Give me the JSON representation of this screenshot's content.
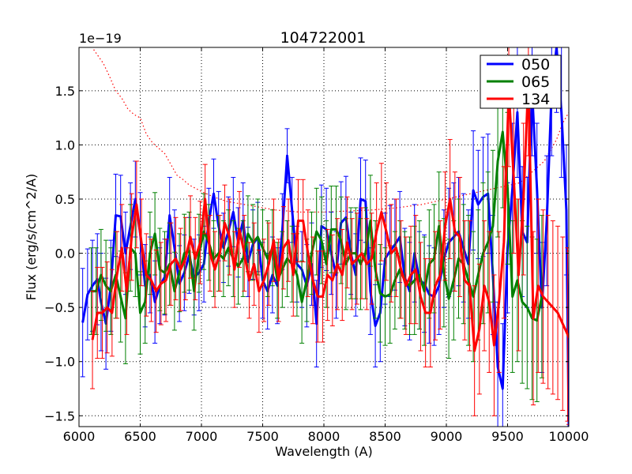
{
  "chart_data": {
    "type": "line",
    "title": "104722001",
    "xlabel": "Wavelength (A)",
    "ylabel": "Flux (erg/s/cm^2/A)",
    "offset_text": "1e−19",
    "xlim": [
      6000,
      10000
    ],
    "ylim": [
      -1.6,
      1.9
    ],
    "grid": true,
    "legend_position": "top-right",
    "xticks": [
      6000,
      6500,
      7000,
      7500,
      8000,
      8500,
      9000,
      9500,
      10000
    ],
    "xtick_labels": [
      "6000",
      "6500",
      "7000",
      "7500",
      "8000",
      "8500",
      "9000",
      "9500",
      "10000"
    ],
    "yticks": [
      -1.5,
      -1.0,
      -0.5,
      0.0,
      0.5,
      1.0,
      1.5
    ],
    "ytick_labels": [
      "−1.5",
      "−1.0",
      "−0.5",
      "0.0",
      "0.5",
      "1.0",
      "1.5"
    ],
    "series": [
      {
        "name": "050",
        "color": "#0000ff",
        "x": [
          6030,
          6070,
          6110,
          6150,
          6180,
          6220,
          6260,
          6300,
          6340,
          6380,
          6420,
          6460,
          6500,
          6540,
          6580,
          6620,
          6660,
          6700,
          6740,
          6780,
          6820,
          6860,
          6900,
          6940,
          6980,
          7020,
          7060,
          7100,
          7140,
          7180,
          7220,
          7260,
          7300,
          7340,
          7380,
          7420,
          7460,
          7500,
          7540,
          7580,
          7620,
          7660,
          7700,
          7740,
          7780,
          7820,
          7860,
          7900,
          7940,
          7980,
          8020,
          8060,
          8100,
          8140,
          8180,
          8220,
          8260,
          8300,
          8340,
          8380,
          8420,
          8460,
          8500,
          8540,
          8580,
          8620,
          8660,
          8700,
          8740,
          8780,
          8820,
          8860,
          8900,
          8940,
          8980,
          9020,
          9060,
          9100,
          9140,
          9180,
          9220,
          9260,
          9300,
          9340,
          9380,
          9420,
          9460,
          9500,
          9540,
          9580,
          9620,
          9660,
          9700,
          9740,
          9780,
          9820,
          9860,
          9900,
          9940,
          9980,
          10000
        ],
        "y": [
          -0.64,
          -0.38,
          -0.3,
          -0.24,
          -0.45,
          -0.65,
          -0.3,
          0.35,
          0.34,
          0.0,
          0.25,
          0.5,
          0.18,
          -0.3,
          -0.2,
          -0.45,
          -0.3,
          -0.22,
          0.35,
          0.05,
          -0.28,
          -0.18,
          -0.02,
          -0.22,
          -0.18,
          -0.1,
          0.3,
          0.55,
          0.25,
          0.05,
          0.2,
          0.38,
          0.1,
          0.3,
          -0.08,
          0.08,
          0.15,
          -0.25,
          -0.35,
          -0.2,
          -0.3,
          0.2,
          0.9,
          0.4,
          -0.1,
          -0.15,
          -0.3,
          -0.1,
          -0.65,
          0.25,
          0.22,
          0.0,
          -0.2,
          0.28,
          0.33,
          0.0,
          -0.2,
          0.5,
          0.48,
          -0.35,
          -0.67,
          -0.55,
          -0.05,
          0.02,
          0.08,
          0.15,
          -0.22,
          -0.35,
          0.0,
          -0.25,
          -0.28,
          -0.38,
          -0.4,
          -0.3,
          -0.05,
          0.1,
          0.15,
          0.2,
          0.05,
          -0.1,
          0.58,
          0.45,
          0.52,
          0.55,
          -0.2,
          -1.05,
          -1.25,
          0.05,
          0.6,
          1.3,
          0.2,
          0.1,
          1.5,
          0.6,
          -0.5,
          0.3,
          1.5,
          1.9,
          1.3,
          0.4,
          -1.6
        ],
        "err": [
          0.5,
          0.42,
          0.42,
          0.42,
          0.45,
          0.42,
          0.42,
          0.38,
          0.38,
          0.38,
          0.4,
          0.35,
          0.38,
          0.38,
          0.35,
          0.38,
          0.35,
          0.35,
          0.35,
          0.35,
          0.35,
          0.35,
          0.35,
          0.35,
          0.35,
          0.35,
          0.3,
          0.32,
          0.32,
          0.32,
          0.32,
          0.32,
          0.32,
          0.35,
          0.32,
          0.32,
          0.32,
          0.35,
          0.35,
          0.35,
          0.35,
          0.35,
          0.25,
          0.3,
          0.35,
          0.35,
          0.38,
          0.38,
          0.4,
          0.38,
          0.38,
          0.38,
          0.4,
          0.38,
          0.38,
          0.38,
          0.38,
          0.38,
          0.38,
          0.4,
          0.38,
          0.45,
          0.42,
          0.42,
          0.42,
          0.42,
          0.45,
          0.45,
          0.45,
          0.45,
          0.45,
          0.45,
          0.45,
          0.45,
          0.45,
          0.5,
          0.5,
          0.5,
          0.5,
          0.5,
          0.55,
          0.5,
          0.55,
          0.55,
          0.55,
          0.6,
          0.6,
          0.6,
          0.6,
          0.6,
          0.6,
          0.6,
          0.6,
          0.6,
          0.6,
          0.6,
          0.6,
          0.6,
          0.6,
          0.6,
          0.6
        ]
      },
      {
        "name": "065",
        "color": "#008000",
        "x": [
          6100,
          6140,
          6180,
          6220,
          6260,
          6300,
          6340,
          6380,
          6420,
          6460,
          6500,
          6540,
          6580,
          6620,
          6660,
          6700,
          6740,
          6780,
          6820,
          6860,
          6900,
          6940,
          6980,
          7020,
          7060,
          7100,
          7140,
          7180,
          7220,
          7260,
          7300,
          7340,
          7380,
          7420,
          7460,
          7500,
          7540,
          7580,
          7620,
          7660,
          7700,
          7740,
          7780,
          7820,
          7860,
          7900,
          7940,
          7980,
          8020,
          8060,
          8100,
          8140,
          8180,
          8220,
          8260,
          8300,
          8340,
          8380,
          8420,
          8460,
          8500,
          8540,
          8580,
          8620,
          8660,
          8700,
          8740,
          8780,
          8820,
          8860,
          8900,
          8940,
          8980,
          9020,
          9060,
          9100,
          9140,
          9180,
          9220,
          9260,
          9300,
          9340,
          9380,
          9420,
          9460,
          9500,
          9540,
          9580,
          9620,
          9660,
          9700,
          9740,
          9780
        ],
        "y": [
          -0.35,
          -0.35,
          -0.2,
          -0.3,
          -0.35,
          -0.2,
          -0.4,
          -0.6,
          0.05,
          0.0,
          -0.55,
          -0.45,
          0.0,
          0.18,
          -0.15,
          -0.18,
          -0.1,
          -0.35,
          -0.18,
          0.0,
          0.02,
          -0.35,
          0.0,
          0.2,
          0.1,
          -0.05,
          0.0,
          -0.05,
          0.05,
          -0.05,
          -0.12,
          -0.05,
          0.18,
          0.1,
          0.15,
          0.05,
          -0.05,
          0.05,
          -0.25,
          -0.15,
          -0.05,
          -0.1,
          -0.2,
          -0.45,
          -0.25,
          0.0,
          0.2,
          0.12,
          -0.1,
          0.22,
          0.22,
          0.12,
          -0.1,
          0.0,
          0.0,
          -0.1,
          0.0,
          0.3,
          -0.15,
          -0.37,
          -0.4,
          -0.38,
          -0.25,
          -0.15,
          -0.25,
          -0.3,
          -0.25,
          -0.2,
          -0.35,
          -0.1,
          -0.05,
          0.25,
          -0.18,
          -0.42,
          -0.25,
          -0.05,
          -0.1,
          -0.25,
          -0.4,
          -0.2,
          0.0,
          0.1,
          0.25,
          0.85,
          1.12,
          0.6,
          -0.4,
          -0.25,
          -0.45,
          -0.5,
          -0.6,
          -0.62,
          -0.4
        ],
        "err": [
          0.4,
          0.4,
          0.42,
          0.42,
          0.4,
          0.4,
          0.42,
          0.42,
          0.4,
          0.4,
          0.38,
          0.38,
          0.38,
          0.38,
          0.38,
          0.38,
          0.38,
          0.36,
          0.36,
          0.36,
          0.36,
          0.36,
          0.36,
          0.35,
          0.35,
          0.35,
          0.35,
          0.35,
          0.35,
          0.35,
          0.35,
          0.35,
          0.35,
          0.35,
          0.35,
          0.35,
          0.35,
          0.35,
          0.35,
          0.35,
          0.35,
          0.35,
          0.38,
          0.38,
          0.38,
          0.38,
          0.4,
          0.4,
          0.4,
          0.4,
          0.4,
          0.4,
          0.42,
          0.42,
          0.42,
          0.42,
          0.42,
          0.42,
          0.45,
          0.45,
          0.45,
          0.45,
          0.45,
          0.45,
          0.45,
          0.45,
          0.5,
          0.5,
          0.5,
          0.5,
          0.5,
          0.5,
          0.5,
          0.55,
          0.55,
          0.55,
          0.55,
          0.6,
          0.6,
          0.6,
          0.65,
          0.65,
          0.7,
          0.7,
          0.7,
          0.7,
          0.7,
          0.75,
          0.75,
          0.75,
          0.75,
          0.75,
          0.75
        ]
      },
      {
        "name": "134",
        "color": "#ff0000",
        "x": [
          6110,
          6150,
          6190,
          6230,
          6270,
          6310,
          6350,
          6390,
          6430,
          6470,
          6510,
          6550,
          6590,
          6630,
          6670,
          6710,
          6750,
          6790,
          6830,
          6870,
          6910,
          6950,
          6990,
          7030,
          7070,
          7110,
          7150,
          7190,
          7230,
          7270,
          7310,
          7350,
          7390,
          7430,
          7470,
          7510,
          7550,
          7590,
          7630,
          7670,
          7710,
          7750,
          7790,
          7830,
          7870,
          7910,
          7950,
          7990,
          8030,
          8070,
          8110,
          8150,
          8190,
          8230,
          8270,
          8310,
          8350,
          8390,
          8430,
          8470,
          8510,
          8550,
          8590,
          8630,
          8670,
          8710,
          8750,
          8790,
          8830,
          8870,
          8910,
          8950,
          8990,
          9030,
          9070,
          9110,
          9150,
          9190,
          9230,
          9270,
          9310,
          9350,
          9390,
          9430,
          9470,
          9510,
          9550,
          9590,
          9630,
          9670,
          9710,
          9750,
          9790,
          9830,
          9870,
          9910,
          9950,
          9990,
          10000
        ],
        "y": [
          -0.8,
          -0.55,
          -0.55,
          -0.5,
          -0.55,
          -0.2,
          0.05,
          -0.35,
          0.15,
          0.45,
          0.1,
          -0.2,
          -0.25,
          -0.35,
          -0.28,
          -0.25,
          -0.1,
          -0.05,
          -0.15,
          -0.05,
          0.15,
          -0.05,
          0.1,
          0.5,
          0.0,
          -0.15,
          0.0,
          0.28,
          0.15,
          -0.15,
          0.22,
          0.0,
          -0.25,
          -0.1,
          -0.35,
          -0.25,
          -0.1,
          0.12,
          -0.25,
          0.05,
          0.12,
          -0.2,
          0.3,
          0.3,
          0.0,
          -0.25,
          -0.4,
          -0.4,
          -0.2,
          -0.25,
          -0.1,
          -0.2,
          0.1,
          -0.1,
          -0.05,
          0.0,
          -0.1,
          -0.05,
          0.2,
          0.38,
          0.2,
          0.0,
          0.05,
          -0.15,
          -0.3,
          -0.2,
          -0.15,
          -0.4,
          -0.55,
          -0.55,
          -0.3,
          -0.2,
          0.25,
          0.5,
          0.2,
          0.15,
          -0.25,
          -0.3,
          -0.9,
          -0.7,
          -0.3,
          -0.45,
          -0.85,
          -0.45,
          0.1,
          1.5,
          0.7,
          -0.2,
          0.5,
          1.6,
          -0.6,
          -0.3,
          -0.4,
          -0.45,
          -0.5,
          -0.55,
          -0.65,
          -0.75,
          -0.78
        ],
        "err": [
          0.45,
          0.42,
          0.42,
          0.42,
          0.4,
          0.4,
          0.4,
          0.4,
          0.4,
          0.4,
          0.4,
          0.38,
          0.38,
          0.38,
          0.38,
          0.38,
          0.38,
          0.38,
          0.38,
          0.38,
          0.38,
          0.38,
          0.38,
          0.32,
          0.35,
          0.35,
          0.35,
          0.35,
          0.35,
          0.35,
          0.35,
          0.35,
          0.35,
          0.38,
          0.38,
          0.38,
          0.38,
          0.38,
          0.38,
          0.38,
          0.38,
          0.38,
          0.38,
          0.38,
          0.4,
          0.4,
          0.42,
          0.42,
          0.42,
          0.42,
          0.42,
          0.42,
          0.42,
          0.42,
          0.42,
          0.42,
          0.42,
          0.42,
          0.45,
          0.45,
          0.45,
          0.45,
          0.45,
          0.45,
          0.45,
          0.45,
          0.5,
          0.5,
          0.5,
          0.5,
          0.5,
          0.5,
          0.5,
          0.55,
          0.55,
          0.55,
          0.55,
          0.6,
          0.6,
          0.6,
          0.6,
          0.65,
          0.65,
          0.65,
          0.7,
          0.7,
          0.7,
          0.7,
          0.7,
          0.7,
          0.8,
          0.8,
          0.8,
          0.8,
          0.8,
          0.8,
          0.8,
          0.8,
          0.8
        ]
      }
    ],
    "reference_curve": {
      "name": "134 error (dotted)",
      "color": "#ff0000",
      "x": [
        6120,
        6200,
        6250,
        6300,
        6350,
        6400,
        6450,
        6500,
        6550,
        6600,
        6650,
        6700,
        6750,
        6800,
        6850,
        6900,
        6950,
        7000,
        7100,
        7200,
        7300,
        7400,
        7500,
        7600,
        7700,
        7800,
        7900,
        8000,
        8200,
        8400,
        8600,
        8800,
        9000,
        9200,
        9400,
        9600,
        9700,
        9800,
        9900,
        9950,
        10000
      ],
      "y": [
        1.88,
        1.75,
        1.63,
        1.5,
        1.43,
        1.33,
        1.28,
        1.25,
        1.1,
        1.02,
        0.97,
        0.92,
        0.82,
        0.72,
        0.68,
        0.63,
        0.6,
        0.57,
        0.52,
        0.48,
        0.46,
        0.44,
        0.42,
        0.4,
        0.39,
        0.38,
        0.38,
        0.38,
        0.39,
        0.4,
        0.42,
        0.45,
        0.5,
        0.55,
        0.6,
        0.65,
        0.75,
        0.85,
        1.05,
        1.2,
        1.3
      ]
    }
  }
}
